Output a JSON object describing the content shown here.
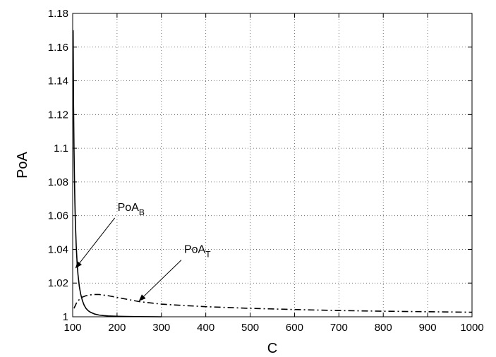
{
  "chart_data": {
    "type": "line",
    "title": "",
    "xlabel": "C",
    "ylabel": "PoA",
    "xlim": [
      100,
      1000
    ],
    "ylim": [
      1,
      1.18
    ],
    "xticks": [
      100,
      200,
      300,
      400,
      500,
      600,
      700,
      800,
      900,
      1000
    ],
    "yticks": [
      1,
      1.02,
      1.04,
      1.06,
      1.08,
      1.1,
      1.12,
      1.14,
      1.16,
      1.18
    ],
    "ytick_labels": [
      "1",
      "1.02",
      "1.04",
      "1.06",
      "1.08",
      "1.1",
      "1.12",
      "1.14",
      "1.16",
      "1.18"
    ],
    "grid": true,
    "series": [
      {
        "style": "solid",
        "color": "#000000",
        "x": [
          101,
          102,
          103,
          104,
          105,
          106,
          108,
          110,
          112,
          115,
          118,
          122,
          126,
          130,
          135,
          140,
          150,
          160,
          170,
          180,
          200,
          220,
          250,
          280,
          300
        ],
        "y": [
          1.17,
          1.125,
          1.1,
          1.082,
          1.068,
          1.057,
          1.042,
          1.032,
          1.025,
          1.018,
          1.0135,
          1.0095,
          1.0068,
          1.005,
          1.0036,
          1.0027,
          1.0016,
          1.001,
          1.0007,
          1.0005,
          1.0003,
          1.0002,
          1.0001,
          1.00005,
          1.0
        ]
      },
      {
        "style": "dash-dot",
        "color": "#000000",
        "x": [
          103,
          110,
          120,
          130,
          140,
          150,
          160,
          180,
          200,
          250,
          300,
          350,
          400,
          500,
          600,
          700,
          800,
          900,
          1000
        ],
        "y": [
          1.005,
          1.009,
          1.0115,
          1.0125,
          1.013,
          1.0132,
          1.0132,
          1.0125,
          1.0115,
          1.009,
          1.0075,
          1.0067,
          1.006,
          1.005,
          1.0043,
          1.0037,
          1.0033,
          1.003,
          1.0027
        ]
      }
    ],
    "annotations": [
      {
        "text": "PoA",
        "sub": "B",
        "arrow_to": [
          107,
          1.029
        ],
        "text_at": [
          198,
          1.062
        ]
      },
      {
        "text": "PoA",
        "sub": "T",
        "arrow_to": [
          250,
          1.0095
        ],
        "text_at": [
          348,
          1.037
        ]
      }
    ]
  }
}
